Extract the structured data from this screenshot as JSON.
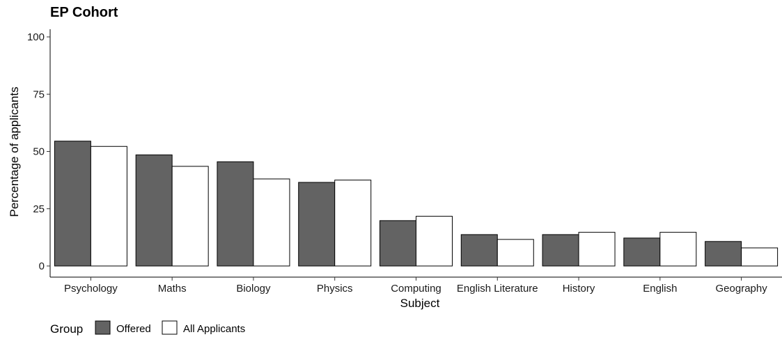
{
  "chart_data": {
    "type": "bar",
    "title": "EP Cohort",
    "xlabel": "Subject",
    "ylabel": "Percentage of applicants",
    "ylim": [
      0,
      100
    ],
    "yticks": [
      0,
      25,
      50,
      75,
      100
    ],
    "grid": false,
    "legend_position": "bottom-left",
    "legend_title": "Group",
    "categories": [
      "Psychology",
      "Maths",
      "Biology",
      "Physics",
      "Computing",
      "English Literature",
      "History",
      "English",
      "Geography"
    ],
    "series": [
      {
        "name": "Offered",
        "color": "#636363",
        "values": [
          54.5,
          48.5,
          45.5,
          36.5,
          19.8,
          13.7,
          13.7,
          12.2,
          10.7
        ]
      },
      {
        "name": "All Applicants",
        "color": "#ffffff",
        "values": [
          52.2,
          43.5,
          38.0,
          37.5,
          21.7,
          11.6,
          14.7,
          14.7,
          7.9
        ]
      }
    ]
  }
}
